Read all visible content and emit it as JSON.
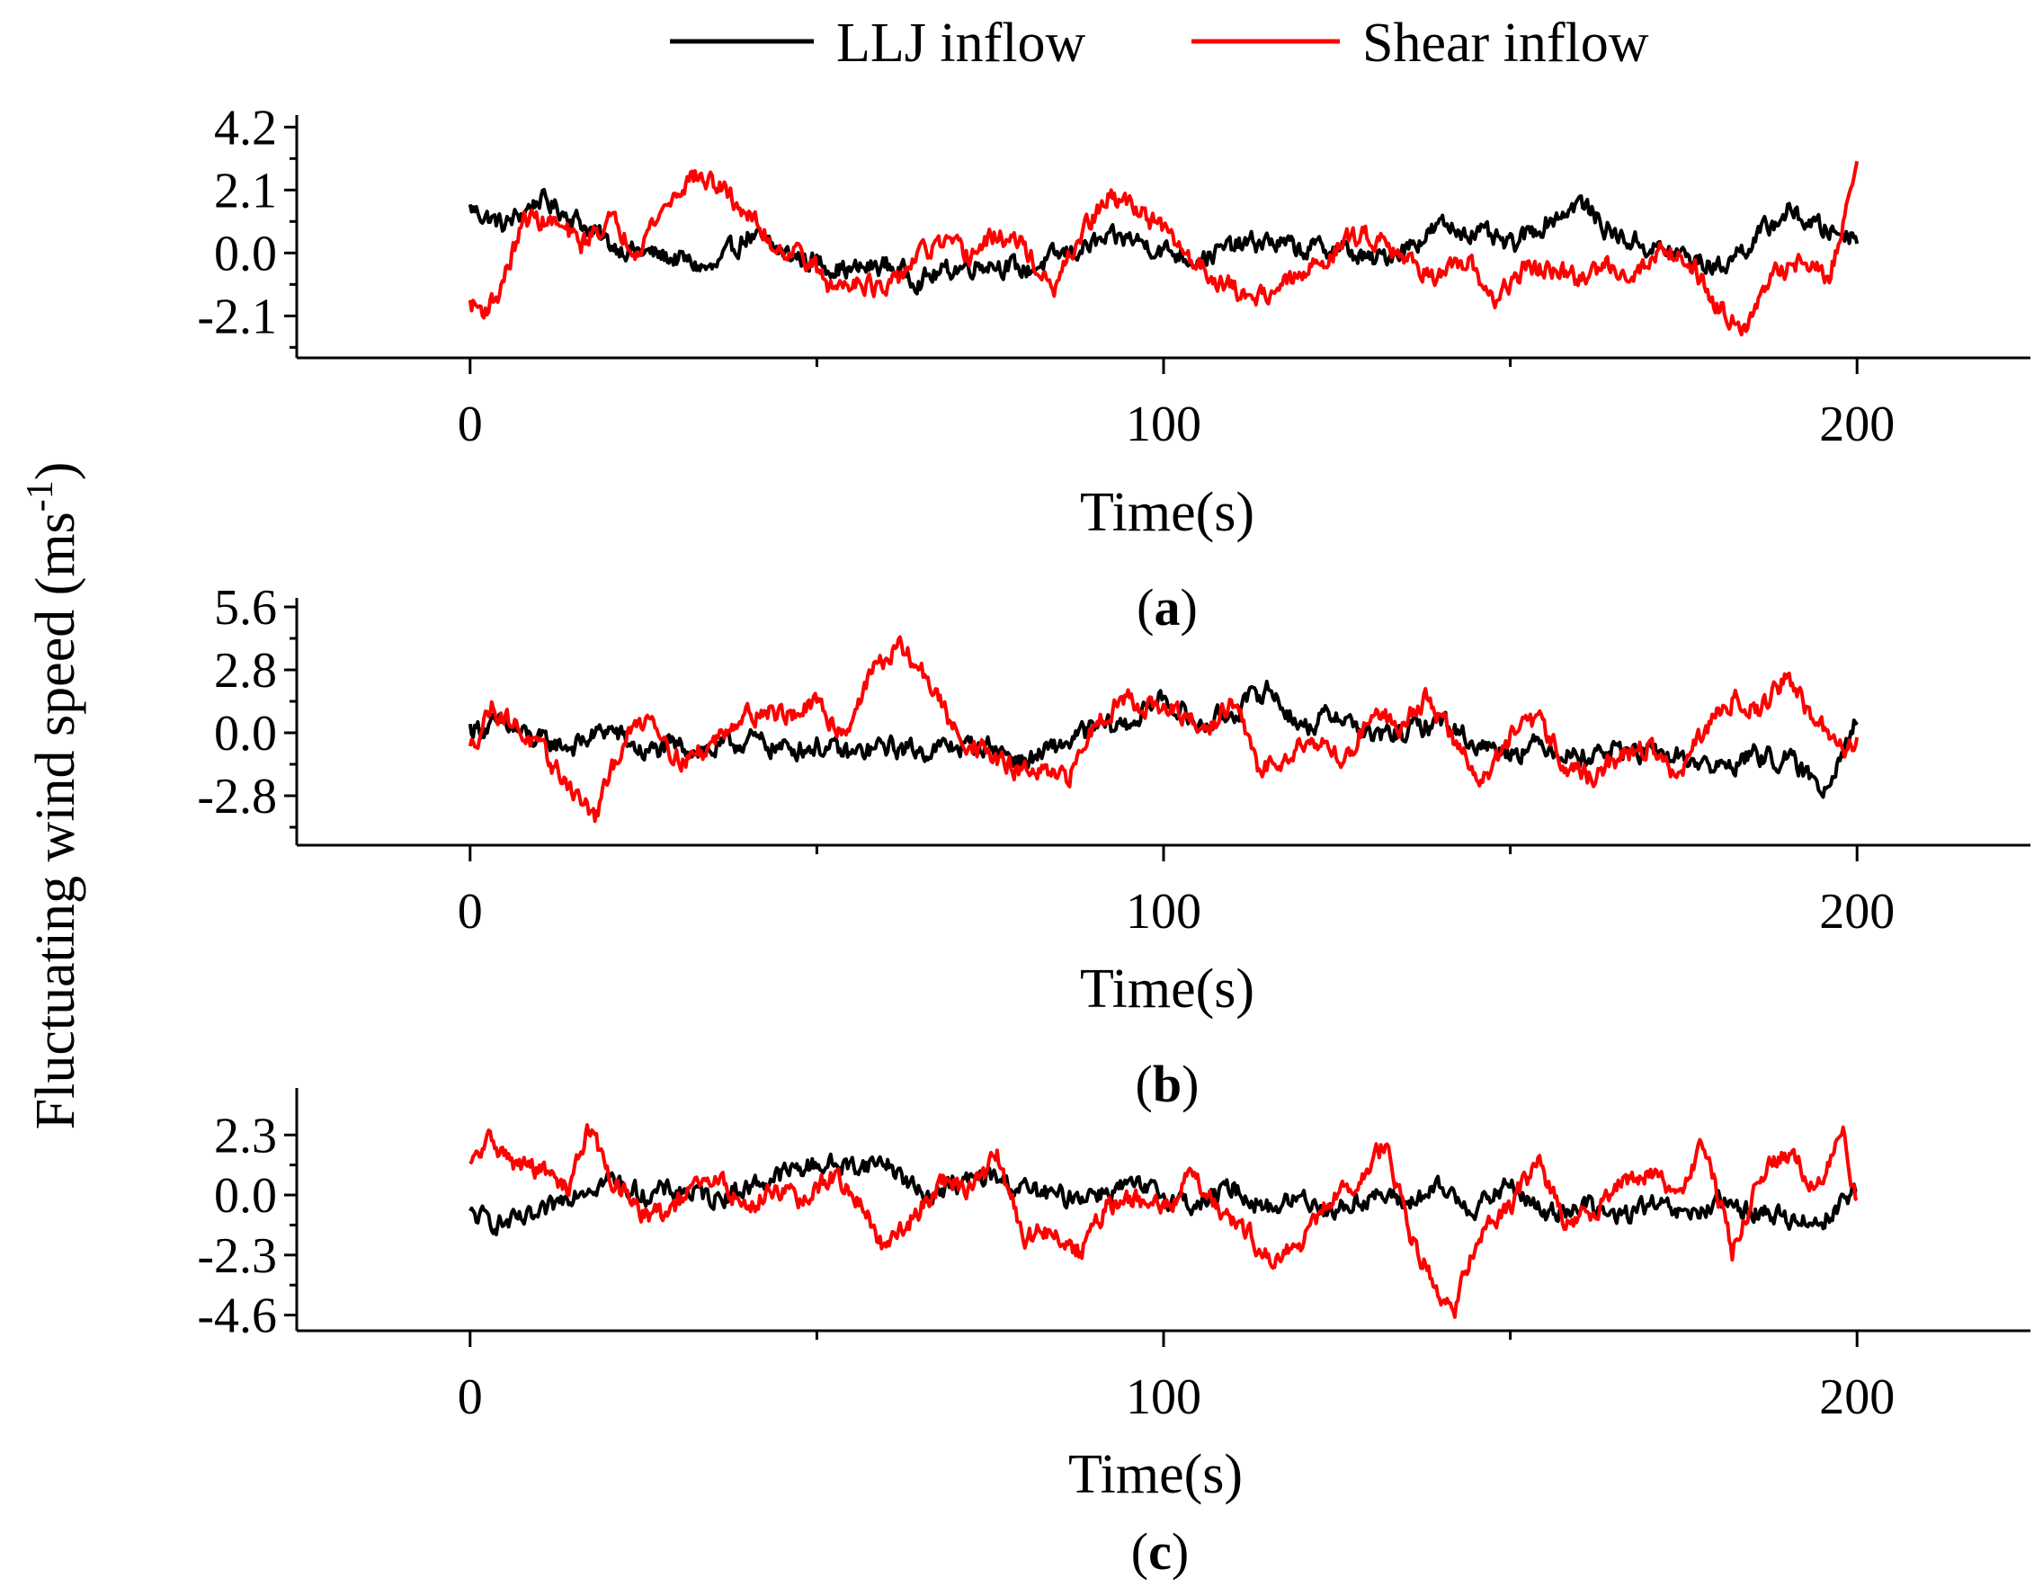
{
  "figure": {
    "ylabel": "Fluctuating wind speed (ms",
    "ylabel_sup": "-1",
    "ylabel_close": ")"
  },
  "legend": [
    {
      "name": "LLJ inflow",
      "color": "#000000"
    },
    {
      "name": "Shear inflow",
      "color": "#ff0000"
    }
  ],
  "chart_data": [
    {
      "type": "line",
      "panel": "a",
      "panel_label": "(a)",
      "panel_label_open": "(",
      "panel_label_letter": "a",
      "panel_label_close": ")",
      "xlabel": "Time(s)",
      "xlim": [
        -25,
        225
      ],
      "ylim": [
        -3.5,
        4.6
      ],
      "xticks": [
        0,
        100,
        200
      ],
      "yticks": [
        4.2,
        2.1,
        0.0,
        -2.1
      ],
      "ytick_labels": [
        "4.2",
        "2.1",
        "0.0",
        "-2.1"
      ],
      "series": [
        {
          "name": "LLJ inflow",
          "color": "#000000",
          "x": [
            0,
            5,
            10,
            15,
            20,
            25,
            30,
            35,
            40,
            45,
            50,
            55,
            60,
            65,
            70,
            75,
            80,
            85,
            90,
            95,
            100,
            105,
            110,
            115,
            120,
            125,
            130,
            135,
            140,
            145,
            150,
            155,
            160,
            165,
            170,
            175,
            180,
            185,
            190,
            195,
            200
          ],
          "y": [
            1.5,
            0.9,
            1.8,
            1.2,
            0.3,
            0.0,
            -0.2,
            -0.6,
            0.6,
            0.0,
            -0.3,
            -0.6,
            -0.4,
            -0.9,
            -0.5,
            -0.3,
            -0.6,
            -0.1,
            0.3,
            0.5,
            0.1,
            -0.2,
            0.2,
            0.4,
            0.1,
            0.2,
            -0.3,
            0.2,
            0.9,
            0.7,
            0.2,
            1.0,
            1.7,
            0.6,
            0.2,
            -0.1,
            -0.5,
            0.4,
            1.4,
            0.8,
            0.6
          ]
        },
        {
          "name": "Shear inflow",
          "color": "#ff0000",
          "x": [
            0,
            2,
            4,
            8,
            12,
            16,
            20,
            24,
            28,
            32,
            36,
            40,
            44,
            48,
            52,
            56,
            60,
            64,
            68,
            72,
            76,
            80,
            84,
            88,
            92,
            96,
            100,
            104,
            108,
            112,
            116,
            120,
            124,
            128,
            132,
            136,
            140,
            144,
            148,
            152,
            156,
            160,
            164,
            168,
            172,
            176,
            180,
            184,
            188,
            192,
            196,
            200
          ],
          "y": [
            -1.7,
            -1.9,
            -1.4,
            1.2,
            1.0,
            0.3,
            1.1,
            0.2,
            1.5,
            2.6,
            2.2,
            1.3,
            0.2,
            0.0,
            -1.2,
            -0.8,
            -1.4,
            -0.2,
            0.3,
            -0.1,
            0.6,
            0.2,
            -1.4,
            0.6,
            1.8,
            1.6,
            0.7,
            -0.2,
            -0.9,
            -1.5,
            -1.2,
            -0.8,
            0.0,
            0.6,
            0.5,
            -0.4,
            -0.8,
            -0.4,
            -1.6,
            -0.5,
            -0.6,
            -0.9,
            -0.4,
            -0.7,
            0.2,
            -0.3,
            -1.8,
            -2.4,
            -0.8,
            -0.2,
            -0.9,
            3.0
          ]
        }
      ]
    },
    {
      "type": "line",
      "panel": "b",
      "panel_label": "(b)",
      "panel_label_open": "(",
      "panel_label_letter": "b",
      "panel_label_close": ")",
      "xlabel": "Time(s)",
      "xlim": [
        -25,
        225
      ],
      "ylim": [
        -5.0,
        6.0
      ],
      "xticks": [
        0,
        100,
        200
      ],
      "yticks": [
        5.6,
        2.8,
        0.0,
        -2.8
      ],
      "ytick_labels": [
        "5.6",
        "2.8",
        "0.0",
        "-2.8"
      ],
      "series": [
        {
          "name": "LLJ inflow",
          "color": "#000000",
          "x": [
            0,
            5,
            10,
            15,
            20,
            25,
            30,
            35,
            40,
            45,
            50,
            55,
            60,
            65,
            70,
            75,
            80,
            85,
            90,
            95,
            100,
            105,
            110,
            115,
            120,
            125,
            130,
            135,
            140,
            145,
            150,
            155,
            160,
            165,
            170,
            175,
            180,
            185,
            190,
            195,
            200
          ],
          "y": [
            0.2,
            0.3,
            -0.4,
            -0.6,
            0.2,
            -0.9,
            -0.6,
            -0.8,
            -0.3,
            -0.7,
            -0.6,
            -1.0,
            -0.6,
            -0.8,
            -0.6,
            -0.6,
            -1.3,
            -0.6,
            0.2,
            0.4,
            1.6,
            0.3,
            0.9,
            2.0,
            0.2,
            0.9,
            -0.2,
            0.0,
            0.6,
            -0.5,
            -0.8,
            -0.5,
            -1.1,
            -0.7,
            -1.0,
            -1.1,
            -1.6,
            -1.0,
            -1.2,
            -2.5,
            0.6
          ]
        },
        {
          "name": "Shear inflow",
          "color": "#ff0000",
          "x": [
            0,
            3,
            6,
            10,
            14,
            18,
            22,
            26,
            30,
            34,
            38,
            42,
            46,
            50,
            54,
            58,
            62,
            66,
            70,
            74,
            78,
            82,
            86,
            90,
            94,
            98,
            102,
            106,
            110,
            114,
            118,
            122,
            126,
            130,
            134,
            138,
            142,
            146,
            150,
            154,
            158,
            162,
            166,
            170,
            174,
            178,
            182,
            186,
            190,
            194,
            198,
            200
          ],
          "y": [
            -0.8,
            1.2,
            0.5,
            -0.8,
            -2.2,
            -3.8,
            -0.4,
            0.9,
            -1.2,
            -0.8,
            0.6,
            1.0,
            0.8,
            1.2,
            0.0,
            2.8,
            3.8,
            2.4,
            0.0,
            -0.8,
            -1.6,
            -1.8,
            -2.2,
            0.4,
            1.6,
            1.2,
            0.8,
            0.0,
            1.4,
            -1.8,
            -0.8,
            -0.2,
            -1.4,
            1.0,
            0.4,
            1.6,
            -0.4,
            -2.2,
            -0.2,
            0.6,
            -1.4,
            -2.0,
            -1.0,
            -0.6,
            -2.0,
            0.0,
            1.6,
            1.0,
            2.6,
            0.4,
            -0.8,
            -0.2
          ]
        }
      ]
    },
    {
      "type": "line",
      "panel": "c",
      "panel_label": "(c)",
      "panel_label_open": "(",
      "panel_label_letter": "c",
      "panel_label_close": ")",
      "xlabel": "Time(s)",
      "xlim": [
        -25,
        225
      ],
      "ylim": [
        -5.2,
        4.1
      ],
      "xticks": [
        0,
        100,
        200
      ],
      "yticks": [
        2.3,
        0.0,
        -2.3,
        -4.6
      ],
      "ytick_labels": [
        "2.3",
        "0.0",
        "-2.3",
        "-4.6"
      ],
      "series": [
        {
          "name": "LLJ inflow",
          "color": "#000000",
          "x": [
            0,
            5,
            10,
            15,
            20,
            25,
            30,
            35,
            40,
            45,
            50,
            55,
            60,
            65,
            70,
            75,
            80,
            85,
            90,
            95,
            100,
            105,
            110,
            115,
            120,
            125,
            130,
            135,
            140,
            145,
            150,
            155,
            160,
            165,
            170,
            175,
            180,
            185,
            190,
            195,
            200
          ],
          "y": [
            -0.8,
            -1.1,
            -0.9,
            0.2,
            0.6,
            0.0,
            0.2,
            -0.1,
            0.3,
            0.8,
            1.2,
            1.1,
            1.3,
            0.0,
            0.4,
            0.7,
            0.2,
            -0.1,
            0.1,
            0.3,
            0.0,
            -0.4,
            0.3,
            -0.5,
            -0.1,
            -0.6,
            0.0,
            -0.3,
            0.2,
            -0.5,
            0.4,
            -0.8,
            -0.3,
            -0.9,
            -0.4,
            -0.8,
            -0.4,
            -0.6,
            -0.9,
            -1.0,
            0.3
          ]
        },
        {
          "name": "Shear inflow",
          "color": "#ff0000",
          "x": [
            0,
            3,
            6,
            10,
            14,
            17,
            20,
            24,
            28,
            32,
            36,
            40,
            44,
            48,
            52,
            56,
            60,
            64,
            68,
            72,
            76,
            80,
            84,
            88,
            92,
            96,
            100,
            104,
            108,
            112,
            116,
            120,
            124,
            128,
            132,
            136,
            140,
            142,
            146,
            150,
            154,
            158,
            162,
            166,
            170,
            174,
            178,
            182,
            186,
            190,
            194,
            198,
            200
          ],
          "y": [
            1.0,
            2.2,
            1.2,
            1.0,
            0.2,
            2.6,
            0.8,
            -0.6,
            -0.8,
            0.2,
            0.6,
            -0.6,
            0.4,
            -0.4,
            0.8,
            -0.2,
            -2.2,
            -0.8,
            0.6,
            0.2,
            1.4,
            -1.6,
            -1.4,
            -2.2,
            -0.4,
            -0.2,
            -0.6,
            0.8,
            -0.4,
            -1.4,
            -2.6,
            -1.8,
            -0.2,
            0.4,
            2.0,
            -1.8,
            -3.8,
            -4.2,
            -1.2,
            -0.4,
            1.2,
            -1.0,
            -0.6,
            0.6,
            0.8,
            0.0,
            2.0,
            -2.2,
            0.8,
            1.6,
            0.4,
            2.2,
            -0.4
          ]
        }
      ]
    }
  ]
}
